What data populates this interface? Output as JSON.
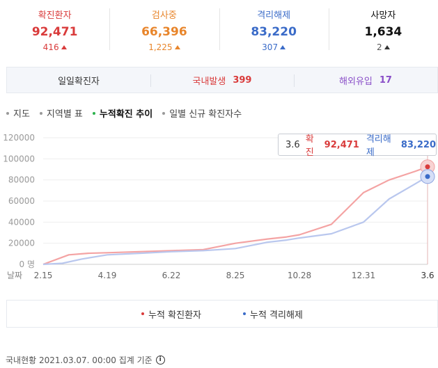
{
  "stats": [
    {
      "label": "확진환자",
      "value": "92,471",
      "delta": "416",
      "color": "#d93b3b"
    },
    {
      "label": "검사중",
      "value": "66,396",
      "delta": "1,225",
      "color": "#e8852b"
    },
    {
      "label": "격리해제",
      "value": "83,220",
      "delta": "307",
      "color": "#3a6bc8"
    },
    {
      "label": "사망자",
      "value": "1,634",
      "delta": "2",
      "color": "#111111"
    }
  ],
  "daily": {
    "label": "일일확진자",
    "domestic_label": "국내발생",
    "domestic_value": "399",
    "overseas_label": "해외유입",
    "overseas_value": "17"
  },
  "nav": [
    "지도",
    "지역별 표",
    "누적확진 추이",
    "일별 신규 확진자수"
  ],
  "nav_active": 2,
  "tooltip": {
    "date": "3.6",
    "confirmed_label": "확진",
    "confirmed_value": "92,471",
    "released_label": "격리해제",
    "released_value": "83,220"
  },
  "chart_data": {
    "type": "line",
    "x_categories": [
      "2.15",
      "4.19",
      "6.22",
      "8.25",
      "10.28",
      "12.31",
      "3.6"
    ],
    "x_axis_label": "날짜",
    "y_ticks": [
      "0 명",
      "20000",
      "40000",
      "60000",
      "80000",
      "100000",
      "120000"
    ],
    "ylim": [
      0,
      120000
    ],
    "series": [
      {
        "name": "누적 확진환자",
        "color": "#f4a3a3",
        "x": [
          0,
          0.4,
          0.7,
          1.0,
          1.5,
          2.0,
          2.5,
          3.0,
          3.5,
          3.8,
          4.0,
          4.5,
          5.0,
          5.4,
          5.8,
          6.0
        ],
        "values": [
          0,
          9000,
          10500,
          11000,
          12000,
          13000,
          14000,
          20000,
          24000,
          26000,
          28000,
          38000,
          68000,
          80000,
          88000,
          92471
        ]
      },
      {
        "name": "누적 격리해제",
        "color": "#b9c7ee",
        "x": [
          0,
          0.3,
          0.6,
          1.0,
          1.5,
          2.0,
          2.5,
          3.0,
          3.5,
          3.8,
          4.0,
          4.5,
          5.0,
          5.4,
          5.8,
          6.0
        ],
        "values": [
          0,
          1000,
          5000,
          9000,
          10500,
          12000,
          13000,
          15000,
          21000,
          23000,
          25000,
          29000,
          40000,
          62000,
          76000,
          83220
        ]
      }
    ],
    "grid": true,
    "legend": "bottom"
  },
  "legend": [
    "누적 확진환자",
    "누적 격리해제"
  ],
  "footer": "국내현황 2021.03.07. 00:00 집계 기준"
}
